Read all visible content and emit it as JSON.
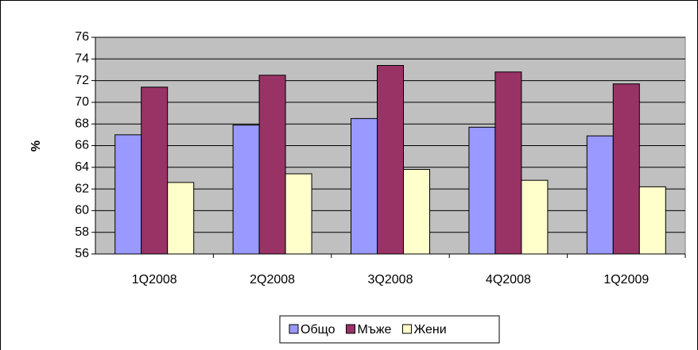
{
  "chart_data": {
    "type": "bar",
    "y_label": "%",
    "categories": [
      "1Q2008",
      "2Q2008",
      "3Q2008",
      "4Q2008",
      "1Q2009"
    ],
    "series": [
      {
        "name": "Общо",
        "color": "#9999ff",
        "values": [
          67.0,
          67.9,
          68.5,
          67.7,
          66.9
        ]
      },
      {
        "name": "Мъже",
        "color": "#993366",
        "values": [
          71.4,
          72.5,
          73.4,
          72.8,
          71.7
        ]
      },
      {
        "name": "Жени",
        "color": "#ffffcc",
        "values": [
          62.6,
          63.4,
          63.8,
          62.8,
          62.2
        ]
      }
    ],
    "ylim": [
      56,
      76
    ],
    "yticks": [
      56,
      58,
      60,
      62,
      64,
      66,
      68,
      70,
      72,
      74,
      76
    ],
    "grid": true,
    "plot_background": "#c0c0c0",
    "legend": "bottom"
  }
}
